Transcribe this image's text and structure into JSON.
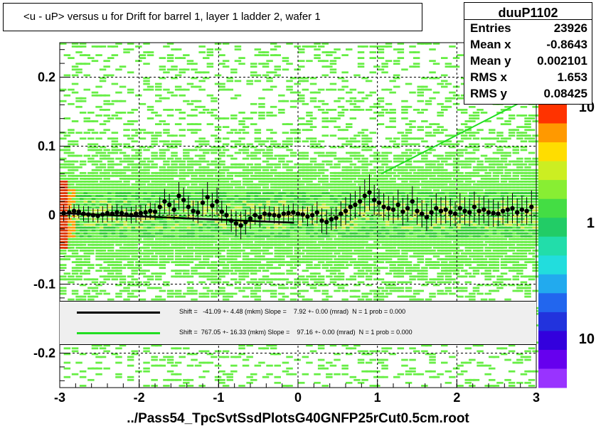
{
  "title": "<u - uP>       versus   u for Drift for barrel 1, layer 1 ladder 2, wafer 1",
  "stats": {
    "name": "duuP1102",
    "rows": [
      {
        "k": "Entries",
        "v": "23926"
      },
      {
        "k": "Mean x",
        "v": "-0.8643"
      },
      {
        "k": "Mean y",
        "v": "0.002101"
      },
      {
        "k": "RMS x",
        "v": "1.653"
      },
      {
        "k": "RMS y",
        "v": "0.08425"
      }
    ]
  },
  "legend": [
    {
      "color": "#000000",
      "text": "Shift =   -41.09 +- 4.48 (mkm) Slope =    7.92 +- 0.00 (mrad)  N = 1 prob = 0.000"
    },
    {
      "color": "#22dd22",
      "text": "Shift =  767.05 +- 16.33 (mkm) Slope =    97.16 +- 0.00 (mrad)  N = 1 prob = 0.000"
    }
  ],
  "footer": "../Pass54_TpcSvtSsdPlotsG40GNFP25rCut0.5cm.root",
  "colors": {
    "black_fit": "#000000",
    "green_fit": "#22dd22",
    "heat_main": "#33cc33",
    "heat_low": "#66ee44",
    "heat_high": "#dd3300"
  },
  "chart_data": {
    "type": "scatter",
    "xlabel": "",
    "ylabel": "",
    "xlim": [
      -3,
      3
    ],
    "ylim": [
      -0.25,
      0.25
    ],
    "x_ticks": [
      {
        "v": -3,
        "label": "-3"
      },
      {
        "v": -2,
        "label": "-2"
      },
      {
        "v": -1,
        "label": "-1"
      },
      {
        "v": 0,
        "label": "0"
      },
      {
        "v": 1,
        "label": "1"
      },
      {
        "v": 2,
        "label": "2"
      },
      {
        "v": 3,
        "label": "3"
      }
    ],
    "y_ticks": [
      {
        "v": 0.2,
        "label": "0.2"
      },
      {
        "v": 0.1,
        "label": "0.1"
      },
      {
        "v": 0,
        "label": "0"
      },
      {
        "v": -0.1,
        "label": "-0.1"
      },
      {
        "v": -0.2,
        "label": "-0.2"
      }
    ],
    "z_scale": "log",
    "z_labels": [
      "10",
      "1",
      "10"
    ],
    "grid": true,
    "profile_points": {
      "x": [
        -2.95,
        -2.88,
        -2.82,
        -2.76,
        -2.7,
        -2.64,
        -2.58,
        -2.52,
        -2.46,
        -2.4,
        -2.34,
        -2.28,
        -2.22,
        -2.16,
        -2.1,
        -2.04,
        -1.98,
        -1.92,
        -1.86,
        -1.8,
        -1.74,
        -1.68,
        -1.62,
        -1.56,
        -1.5,
        -1.44,
        -1.38,
        -1.32,
        -1.26,
        -1.2,
        -1.14,
        -1.08,
        -1.02,
        -0.96,
        -0.9,
        -0.84,
        -0.78,
        -0.72,
        -0.66,
        -0.6,
        -0.54,
        -0.48,
        -0.42,
        -0.36,
        -0.3,
        -0.24,
        -0.18,
        -0.12,
        -0.06,
        0.0,
        0.06,
        0.12,
        0.18,
        0.24,
        0.3,
        0.36,
        0.42,
        0.48,
        0.54,
        0.6,
        0.66,
        0.72,
        0.78,
        0.84,
        0.9,
        0.96,
        1.02,
        1.08,
        1.14,
        1.2,
        1.26,
        1.32,
        1.38,
        1.44,
        1.5,
        1.56,
        1.62,
        1.68,
        1.74,
        1.8,
        1.86,
        1.92,
        1.98,
        2.04,
        2.1,
        2.16,
        2.22,
        2.28,
        2.34,
        2.4,
        2.46,
        2.52,
        2.58,
        2.64,
        2.7,
        2.76,
        2.82,
        2.88,
        2.94
      ],
      "y": [
        0.003,
        0.004,
        0.006,
        0.005,
        0.002,
        0.001,
        0.0,
        -0.001,
        0.001,
        0.003,
        0.002,
        0.004,
        0.003,
        0.001,
        0.0,
        0.002,
        0.003,
        0.004,
        0.006,
        0.005,
        0.012,
        0.02,
        0.015,
        0.008,
        0.028,
        0.022,
        0.012,
        0.006,
        0.004,
        0.018,
        0.026,
        0.014,
        0.02,
        0.005,
        0.0,
        -0.008,
        -0.012,
        -0.015,
        -0.01,
        -0.005,
        0.0,
        -0.003,
        0.002,
        0.001,
        0.0,
        -0.001,
        0.002,
        0.003,
        0.004,
        0.002,
        0.001,
        -0.002,
        0.0,
        0.004,
        -0.008,
        -0.01,
        -0.006,
        -0.004,
        0.002,
        0.006,
        0.012,
        0.015,
        0.02,
        0.028,
        0.033,
        0.022,
        0.018,
        0.012,
        0.01,
        0.008,
        0.015,
        0.005,
        0.01,
        0.02,
        0.006,
        0.002,
        -0.003,
        0.004,
        0.01,
        0.006,
        0.008,
        0.004,
        0.002,
        0.01,
        0.006,
        0.004,
        0.012,
        0.006,
        0.008,
        0.004,
        0.003,
        0.002,
        0.006,
        0.008,
        0.01,
        0.004,
        0.008,
        0.006,
        0.012
      ],
      "err": [
        0.012,
        0.01,
        0.01,
        0.01,
        0.011,
        0.012,
        0.01,
        0.01,
        0.012,
        0.013,
        0.012,
        0.012,
        0.011,
        0.01,
        0.012,
        0.013,
        0.012,
        0.011,
        0.012,
        0.012,
        0.014,
        0.018,
        0.016,
        0.015,
        0.02,
        0.018,
        0.016,
        0.015,
        0.016,
        0.02,
        0.022,
        0.018,
        0.02,
        0.016,
        0.014,
        0.016,
        0.018,
        0.02,
        0.018,
        0.015,
        0.014,
        0.015,
        0.012,
        0.012,
        0.012,
        0.013,
        0.014,
        0.012,
        0.013,
        0.012,
        0.012,
        0.014,
        0.014,
        0.016,
        0.018,
        0.018,
        0.016,
        0.016,
        0.018,
        0.02,
        0.02,
        0.02,
        0.022,
        0.024,
        0.026,
        0.022,
        0.02,
        0.02,
        0.018,
        0.02,
        0.022,
        0.02,
        0.02,
        0.022,
        0.02,
        0.02,
        0.02,
        0.02,
        0.022,
        0.02,
        0.02,
        0.02,
        0.018,
        0.022,
        0.02,
        0.02,
        0.022,
        0.02,
        0.02,
        0.02,
        0.02,
        0.018,
        0.02,
        0.02,
        0.022,
        0.02,
        0.02,
        0.02,
        0.024
      ]
    },
    "fits": [
      {
        "color": "#000000",
        "x": [
          -3,
          -0.05
        ],
        "y": [
          0.003,
          -0.011
        ]
      },
      {
        "color": "#22dd22",
        "x": [
          1.05,
          3
        ],
        "y": [
          0.06,
          0.175
        ]
      }
    ]
  }
}
